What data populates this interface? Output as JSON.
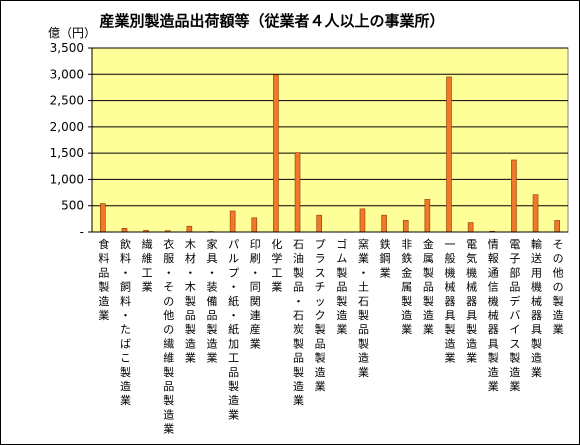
{
  "chart_data": {
    "type": "bar",
    "title": "産業別製造品出荷額等（従業者４人以上の事業所）",
    "unit_label": "億（円）",
    "ylim": [
      0,
      3500
    ],
    "yticks": [
      0,
      500,
      1000,
      1500,
      2000,
      2500,
      3000,
      3500
    ],
    "ytick_labels": [
      "-",
      "500",
      "1,000",
      "1,500",
      "2,000",
      "2,500",
      "3,000",
      "3,500"
    ],
    "grid": true,
    "legend": "none",
    "bar_color": "#f07828",
    "plot_bg": "#ffff99",
    "categories": [
      "食料品製造業",
      "飲料・飼料・たばこ製造業",
      "繊維工業",
      "衣服・その他の繊維製品製造業",
      "木材・木製品製造業",
      "家具・装備品製造業",
      "パルプ・紙・紙加工品製造業",
      "印刷・同関連産業",
      "化学工業",
      "石油製品・石炭製品製造業",
      "プラスチック製品製造業",
      "ゴム製品製造業",
      "窯業・土石製品製造業",
      "鉄鋼業",
      "非鉄金属製造業",
      "金属製品製造業",
      "一般機械器具製造業",
      "電気機械器具製造業",
      "情報通信機械器具製造業",
      "電子部品デバイス製造業",
      "輸送用機械器具製造業",
      "その他の製造業"
    ],
    "values": [
      540,
      70,
      30,
      25,
      110,
      10,
      400,
      270,
      2990,
      1510,
      320,
      0,
      440,
      320,
      220,
      620,
      2950,
      180,
      15,
      1370,
      710,
      220
    ]
  }
}
